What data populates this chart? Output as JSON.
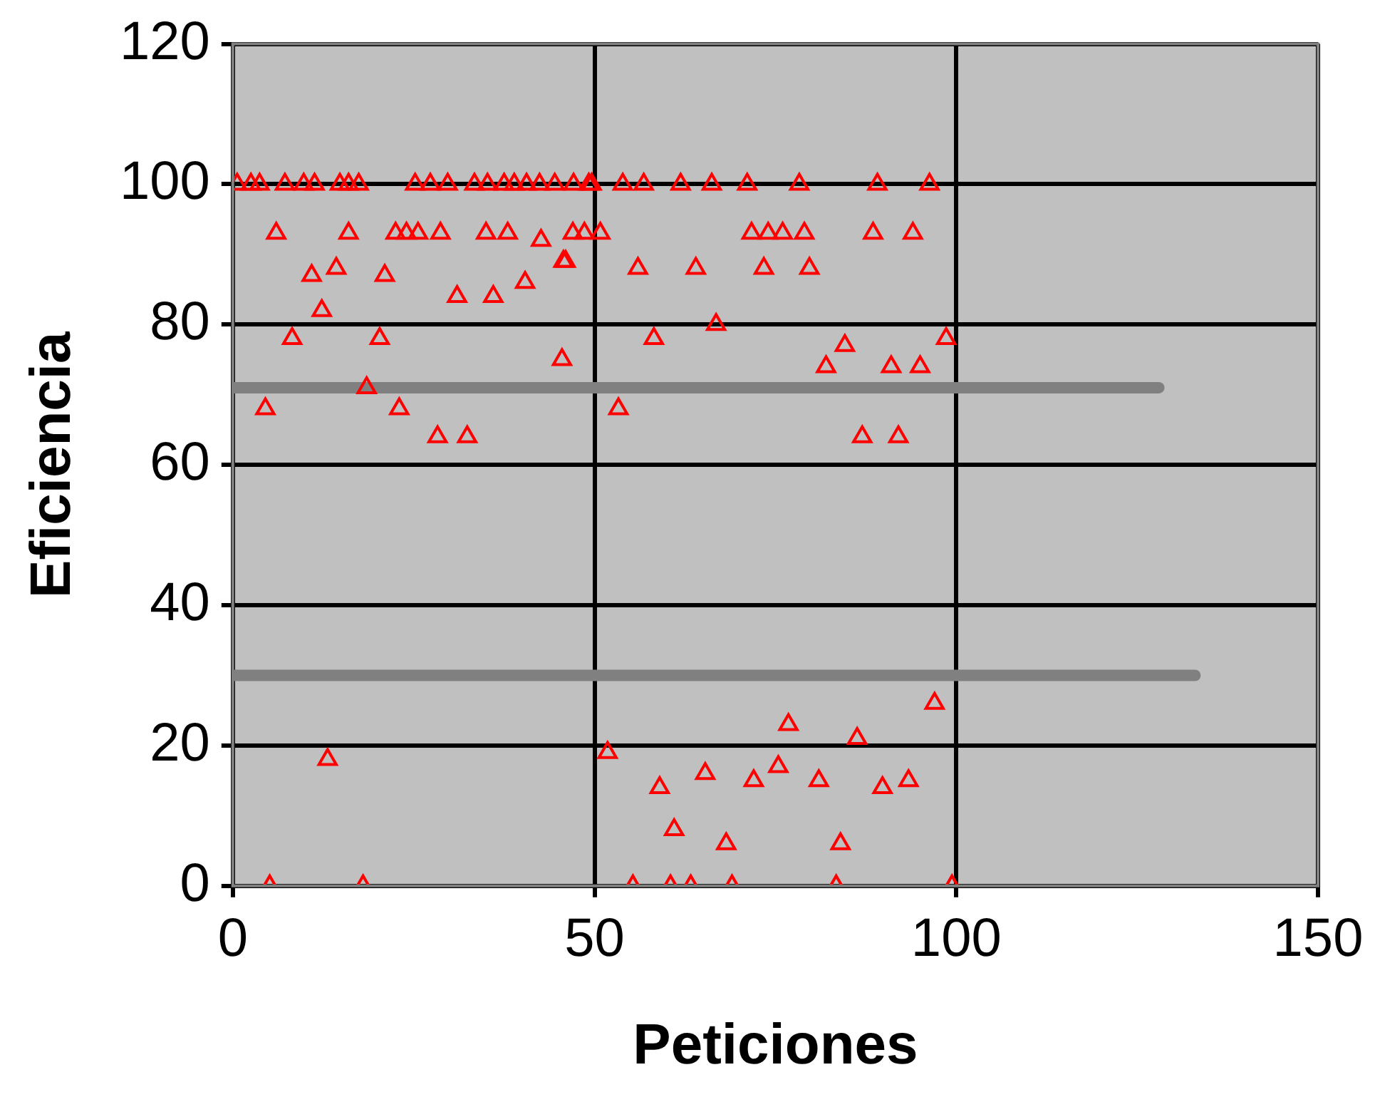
{
  "chart_data": {
    "type": "scatter",
    "xlabel": "Peticiones",
    "ylabel": "Eficiencia",
    "xlim": [
      0,
      150
    ],
    "xticks": [
      0,
      50,
      100,
      150
    ],
    "ylim": [
      0,
      120
    ],
    "yticks": [
      0,
      20,
      40,
      60,
      80,
      100,
      120
    ],
    "grid": true,
    "legend": false,
    "series": [
      {
        "color": "#ff0000",
        "marker": "triangle",
        "x": [
          0.6,
          2.5,
          3.7,
          7.2,
          9.8,
          11.3,
          14.8,
          16,
          17.4,
          25.2,
          27.3,
          29.7,
          33.4,
          35.2,
          37.5,
          38.9,
          40.6,
          42.4,
          44.5,
          47.1,
          49.2,
          49.6,
          53.9,
          56.8,
          61.9,
          66.2,
          71.1,
          78.3,
          89.1,
          96.3,
          6,
          16,
          22.5,
          24,
          25.6,
          28.7,
          35,
          38,
          42.6,
          47,
          48.6,
          50.8,
          71.7,
          74,
          76,
          79,
          88.5,
          94,
          45.7,
          10.9,
          14.3,
          21,
          31,
          36,
          40.4,
          46,
          56,
          64,
          73.4,
          79.7,
          12.3,
          8.2,
          20.3,
          45.5,
          58.2,
          66.8,
          84.6,
          82,
          91,
          95,
          98.6,
          4.5,
          18.5,
          23,
          53.3,
          28.3,
          32.4,
          87,
          92,
          13.1,
          51.8,
          97,
          76.8,
          86.3,
          59,
          65.3,
          72,
          75.4,
          81,
          89.8,
          93.4,
          61,
          68.2,
          84,
          5.1,
          18,
          55.3,
          60.5,
          63.3,
          69,
          83.4,
          99.4
        ],
        "values": [
          100,
          100,
          100,
          100,
          100,
          100,
          100,
          100,
          100,
          100,
          100,
          100,
          100,
          100,
          100,
          100,
          100,
          100,
          100,
          100,
          100,
          100,
          100,
          100,
          100,
          100,
          100,
          100,
          100,
          100,
          93,
          93,
          93,
          93,
          93,
          93,
          93,
          93,
          92,
          93,
          93,
          93,
          93,
          93,
          93,
          93,
          93,
          93,
          89,
          87,
          88,
          87,
          84,
          84,
          86,
          89,
          88,
          88,
          88,
          88,
          82,
          78,
          78,
          75,
          78,
          80,
          77,
          74,
          74,
          74,
          78,
          68,
          71,
          68,
          68,
          64,
          64,
          64,
          64,
          18,
          19,
          26,
          23,
          21,
          14,
          16,
          15,
          17,
          15,
          14,
          15,
          8,
          6,
          6,
          0,
          0,
          0,
          0,
          0,
          0,
          0,
          0
        ]
      },
      {
        "type": "line",
        "color": "#808080",
        "marker": "none",
        "x": [
          0,
          128
        ],
        "values": [
          71,
          71
        ]
      },
      {
        "type": "line",
        "color": "#808080",
        "marker": "none",
        "x": [
          0,
          133
        ],
        "values": [
          30,
          30
        ]
      }
    ]
  }
}
